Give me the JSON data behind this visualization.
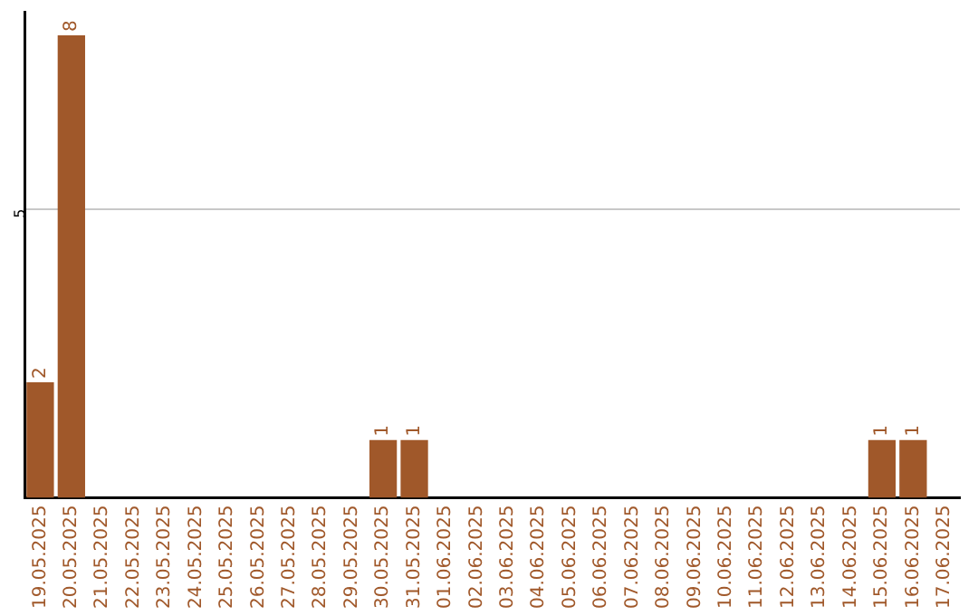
{
  "chart_data": {
    "type": "bar",
    "categories": [
      "19.05.2025",
      "20.05.2025",
      "21.05.2025",
      "22.05.2025",
      "23.05.2025",
      "24.05.2025",
      "25.05.2025",
      "26.05.2025",
      "27.05.2025",
      "28.05.2025",
      "29.05.2025",
      "30.05.2025",
      "31.05.2025",
      "01.06.2025",
      "02.06.2025",
      "03.06.2025",
      "04.06.2025",
      "05.06.2025",
      "06.06.2025",
      "07.06.2025",
      "08.06.2025",
      "09.06.2025",
      "10.06.2025",
      "11.06.2025",
      "12.06.2025",
      "13.06.2025",
      "14.06.2025",
      "15.06.2025",
      "16.06.2025",
      "17.06.2025"
    ],
    "values": [
      2,
      8,
      0,
      0,
      0,
      0,
      0,
      0,
      0,
      0,
      0,
      1,
      1,
      0,
      0,
      0,
      0,
      0,
      0,
      0,
      0,
      0,
      0,
      0,
      0,
      0,
      0,
      1,
      1,
      0
    ],
    "value_labels": [
      "2",
      "8",
      null,
      null,
      null,
      null,
      null,
      null,
      null,
      null,
      null,
      "1",
      "1",
      null,
      null,
      null,
      null,
      null,
      null,
      null,
      null,
      null,
      null,
      null,
      null,
      null,
      null,
      "1",
      "1",
      null
    ],
    "color": "#a0582a",
    "ylim": [
      0,
      8.4
    ],
    "yticks": [
      5
    ],
    "grid": "y",
    "legend": false
  }
}
